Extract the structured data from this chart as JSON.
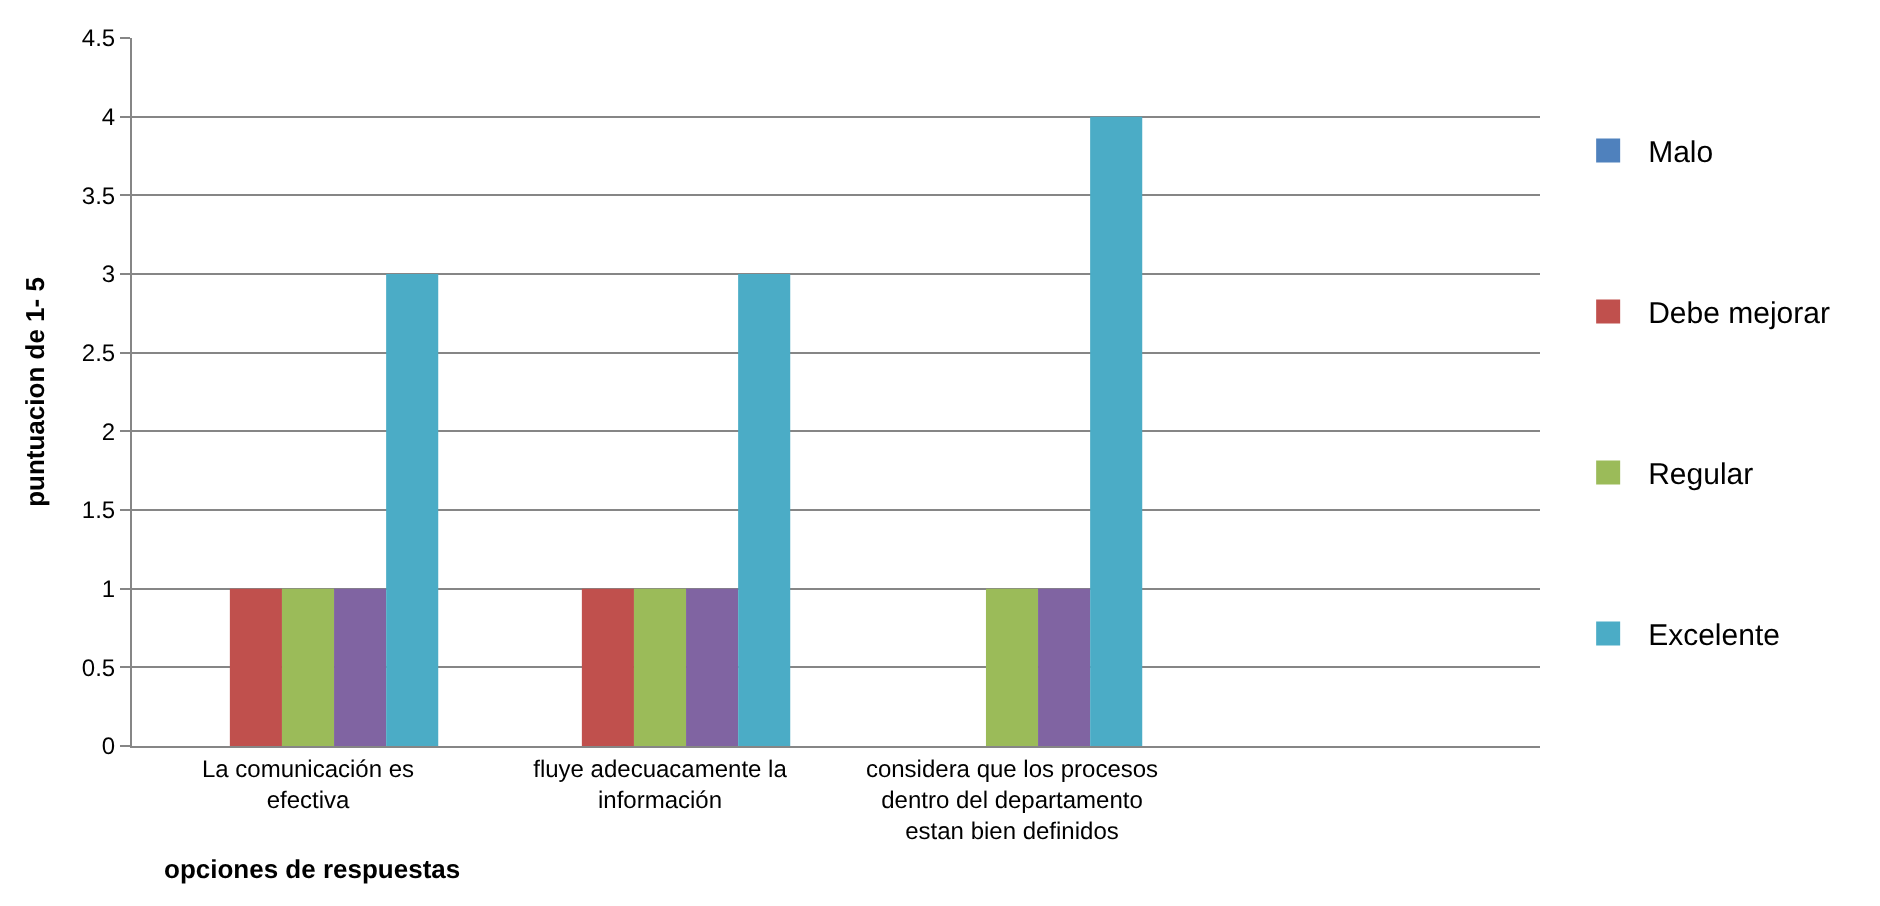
{
  "chart_data": {
    "type": "bar",
    "categories": [
      "La comunicación es efectiva",
      "fluye adecuacamente la información",
      "considera que los procesos dentro del departamento estan bien definidos",
      null
    ],
    "series": [
      {
        "name": "Malo",
        "color": "#4f81bd",
        "values": [
          null,
          null,
          null,
          null
        ]
      },
      {
        "name": "Debe mejorar",
        "color": "#c0504d",
        "values": [
          1,
          1,
          null,
          null
        ]
      },
      {
        "name": "Regular",
        "color": "#9bbb59",
        "values": [
          1,
          1,
          1,
          null
        ]
      },
      {
        "color": "#8064a2",
        "values": [
          1,
          1,
          1,
          null
        ]
      },
      {
        "name": "Excelente",
        "color": "#4bacc6",
        "values": [
          3,
          3,
          4,
          null
        ]
      }
    ],
    "xlabel": "opciones de respuestas",
    "ylabel": "puntuacion de 1- 5",
    "ylim": [
      0,
      4.5
    ],
    "yticks": [
      0,
      0.5,
      1,
      1.5,
      2,
      2.5,
      3,
      3.5,
      4,
      4.5
    ],
    "grid": "y",
    "legend": "right"
  }
}
